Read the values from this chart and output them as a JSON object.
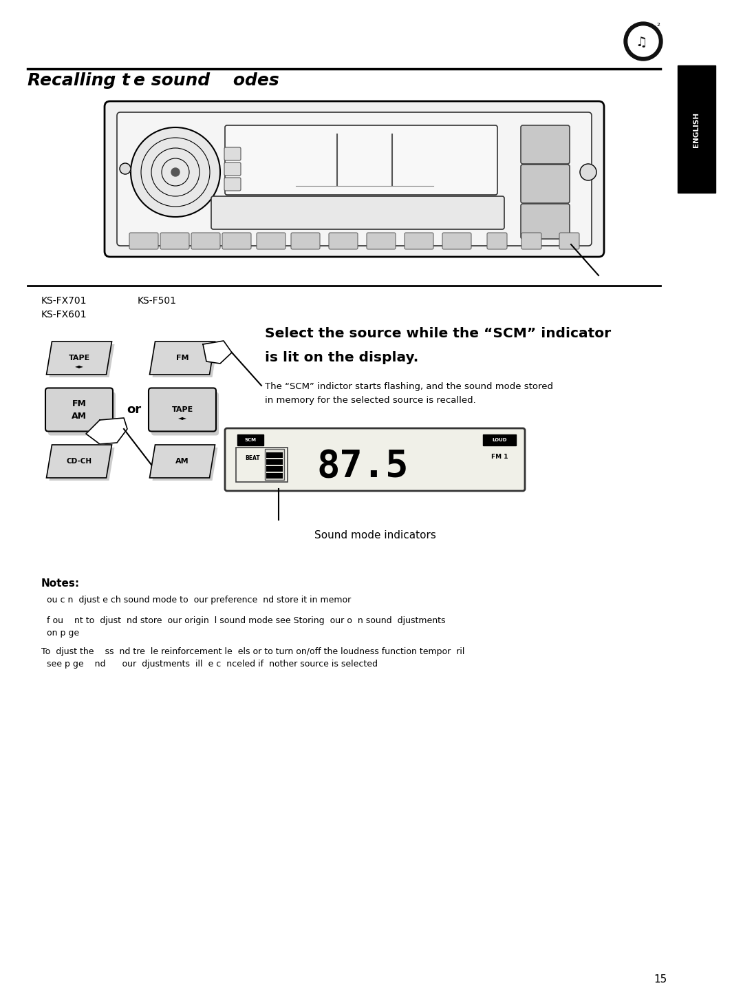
{
  "title": "Recalling t e sound  odes",
  "page_number": "15",
  "model_left1": "KS-FX701",
  "model_left2": "KS-FX601",
  "model_right": "KS-F501",
  "heading_line1": "Select the source while the “SCM” indicator",
  "heading_line2": "is lit on the display.",
  "body_text_line1": "The “SCM” indictor starts flashing, and the sound mode stored",
  "body_text_line2": "in memory for the selected source is recalled.",
  "or_text": "or",
  "sound_mode_label": "Sound mode indicators",
  "notes_title": "Notes:",
  "note1": "  ou c n  djust e ch sound mode to  our preference  nd store it in memor",
  "note2": "  f ou    nt to  djust  nd store  our origin  l sound mode see Storing  our o  n sound  djustments\n  on p ge",
  "note3": "To  djust the    ss  nd tre  le reinforcement le  els or to turn on/off the loudness function tempor  ril\n  see p ge    nd      our  djustments  ill  e c  nceled if  nother source is selected",
  "bg_color": "#ffffff",
  "text_color": "#000000"
}
